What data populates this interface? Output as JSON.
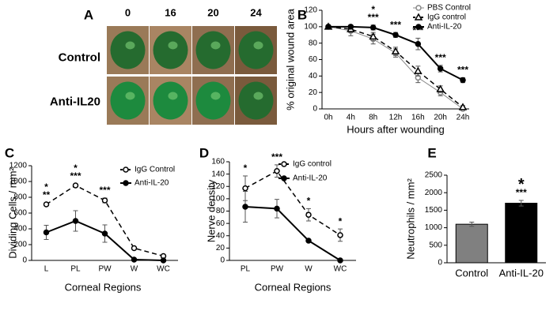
{
  "image_panel": {
    "panel_label": "A",
    "columns": [
      "0",
      "16",
      "20",
      "24"
    ],
    "rows": [
      "Control",
      "Anti-IL20"
    ]
  },
  "chart_data": [
    {
      "type": "line",
      "panel_label": "B",
      "x_label": "Hours after wounding",
      "y_label": "% original wound area",
      "categories": [
        "0h",
        "4h",
        "8h",
        "12h",
        "16h",
        "20h",
        "24h"
      ],
      "ylim": [
        0,
        120
      ],
      "yticks": [
        0,
        20,
        40,
        60,
        80,
        100,
        120
      ],
      "series": [
        {
          "name": "PBS Control",
          "color": "#888888",
          "marker": "circle-open",
          "line": "solid-thin",
          "values": [
            100,
            95,
            85,
            68,
            38,
            20,
            0
          ],
          "errors": [
            2,
            6,
            6,
            5,
            6,
            4,
            2
          ]
        },
        {
          "name": "IgG control",
          "color": "#000000",
          "marker": "triangle-open",
          "line": "dashed",
          "values": [
            100,
            97,
            88,
            70,
            46,
            24,
            2
          ],
          "errors": [
            2,
            4,
            5,
            5,
            6,
            4,
            2
          ]
        },
        {
          "name": "Anti-IL-20",
          "color": "#000000",
          "marker": "circle-filled",
          "line": "solid",
          "values": [
            100,
            100,
            99,
            90,
            79,
            49,
            35
          ],
          "errors": [
            1,
            2,
            3,
            3,
            7,
            4,
            3
          ]
        }
      ],
      "significance": [
        null,
        null,
        "***",
        "***",
        "***",
        "***",
        "***"
      ],
      "significance_upper": [
        null,
        null,
        "*",
        null,
        null,
        null,
        null
      ]
    },
    {
      "type": "line",
      "panel_label": "C",
      "x_label": "Corneal Regions",
      "y_label": "Dividing Cells / mm²",
      "categories": [
        "L",
        "PL",
        "PW",
        "W",
        "WC"
      ],
      "ylim": [
        0,
        1200
      ],
      "yticks": [
        0,
        200,
        400,
        600,
        800,
        1000,
        1200
      ],
      "series": [
        {
          "name": "IgG Control",
          "color": "#000000",
          "marker": "circle-open",
          "line": "dashed",
          "values": [
            710,
            950,
            760,
            155,
            55
          ],
          "errors": [
            20,
            20,
            30,
            10,
            8
          ]
        },
        {
          "name": "Anti-IL-20",
          "color": "#000000",
          "marker": "circle-filled",
          "line": "solid",
          "values": [
            355,
            500,
            340,
            10,
            0
          ],
          "errors": [
            90,
            130,
            110,
            5,
            0
          ]
        }
      ],
      "significance": [
        "**",
        "***",
        "***",
        null,
        null
      ],
      "significance_upper": [
        "*",
        "*",
        null,
        null,
        null
      ]
    },
    {
      "type": "line",
      "panel_label": "D",
      "x_label": "Corneal Regions",
      "y_label": "Nerve density",
      "categories": [
        "PL",
        "PW",
        "W",
        "WC"
      ],
      "ylim": [
        0,
        160
      ],
      "yticks": [
        0,
        20,
        40,
        60,
        80,
        100,
        120,
        140,
        160
      ],
      "series": [
        {
          "name": "IgG control",
          "color": "#000000",
          "marker": "circle-open",
          "line": "dashed",
          "values": [
            117,
            145,
            74,
            41
          ],
          "errors": [
            20,
            10,
            10,
            10
          ]
        },
        {
          "name": "Anti-IL-20",
          "color": "#000000",
          "marker": "circle-filled",
          "line": "solid",
          "values": [
            87,
            84,
            32,
            0
          ],
          "errors": [
            25,
            15,
            2,
            0
          ]
        }
      ],
      "significance": [
        "*",
        "***",
        "*",
        "*"
      ]
    },
    {
      "type": "bar",
      "panel_label": "E",
      "y_label": "Neutrophils / mm²",
      "categories": [
        "Control",
        "Anti-IL-20"
      ],
      "values": [
        1100,
        1700
      ],
      "errors": [
        60,
        80
      ],
      "colors": [
        "#808080",
        "#000000"
      ],
      "ylim": [
        0,
        2500
      ],
      "yticks": [
        0,
        500,
        1000,
        1500,
        2000,
        2500
      ],
      "significance": [
        null,
        "***"
      ],
      "significance_upper": [
        null,
        "*"
      ]
    }
  ]
}
